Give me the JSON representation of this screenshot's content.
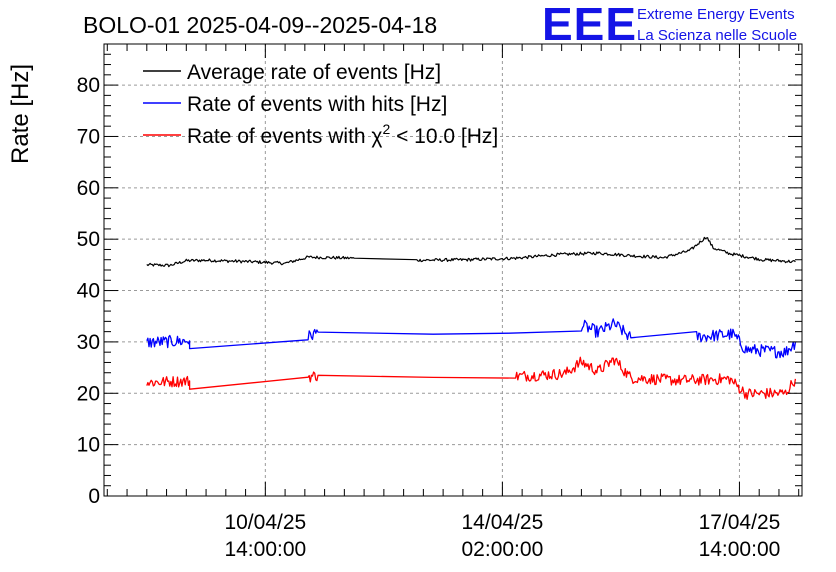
{
  "title": "BOLO-01 2025-04-09--2025-04-18",
  "logo": {
    "mark": "EEE",
    "line1": "Extreme Energy Events",
    "line2": "La Scienza nelle Scuole"
  },
  "chart_data": {
    "type": "line",
    "ylabel": "Rate [Hz]",
    "xlabel": "",
    "ylim": [
      0,
      88
    ],
    "xlim_hours": [
      0,
      212
    ],
    "grid": true,
    "legend_position": "top-left",
    "y_ticks": [
      "0",
      "10",
      "20",
      "30",
      "40",
      "50",
      "60",
      "70",
      "80"
    ],
    "x_ticks": [
      {
        "at": 49,
        "line1": "10/04/25",
        "line2": "14:00:00"
      },
      {
        "at": 121,
        "line1": "14/04/25",
        "line2": "02:00:00"
      },
      {
        "at": 193,
        "line1": "17/04/25",
        "line2": "14:00:00"
      }
    ],
    "series": [
      {
        "name": "Average rate of events [Hz]",
        "legend_prefix": "Average rate of events [Hz]",
        "color": "#000000",
        "noise": 0.3,
        "x": [
          13,
          20,
          25,
          31,
          45,
          55,
          62,
          76,
          95,
          110,
          125,
          138,
          150,
          160,
          170,
          178,
          183,
          185,
          190,
          200,
          210
        ],
        "y": [
          45.0,
          44.9,
          45.8,
          45.9,
          45.6,
          45.3,
          46.5,
          46.3,
          45.9,
          46.0,
          46.3,
          47.0,
          47.3,
          46.8,
          46.4,
          47.8,
          50.5,
          48.3,
          47.2,
          46.0,
          45.6
        ]
      },
      {
        "name": "Rate of events with hits [Hz]",
        "legend_prefix": "Rate of events with hits [Hz]",
        "color": "#0000ff",
        "noise": 1.2,
        "x": [
          13,
          26,
          26,
          62,
          65,
          100,
          123,
          145,
          150,
          155,
          160,
          180,
          191,
          195,
          207,
          210
        ],
        "y": [
          29.9,
          30.2,
          28.7,
          31.0,
          31.9,
          31.5,
          31.7,
          33.3,
          31.9,
          33.5,
          30.8,
          31.0,
          31.5,
          28.5,
          28.0,
          29.9
        ]
      },
      {
        "name": "Rate of events with χ² < 10.0 [Hz]",
        "legend_prefix": "Rate of events with χ",
        "legend_sup": "2",
        "legend_suffix": " < 10.0 [Hz]",
        "color": "#ff0000",
        "noise": 1.1,
        "x": [
          13,
          26,
          26,
          62,
          65,
          100,
          125,
          140,
          145,
          150,
          155,
          160,
          175,
          190,
          195,
          207,
          210
        ],
        "y": [
          22.1,
          22.4,
          20.8,
          23.2,
          23.5,
          23.1,
          23.3,
          23.8,
          26.1,
          24.3,
          26.6,
          23.0,
          22.5,
          22.8,
          19.9,
          20.0,
          22.8
        ]
      }
    ]
  }
}
